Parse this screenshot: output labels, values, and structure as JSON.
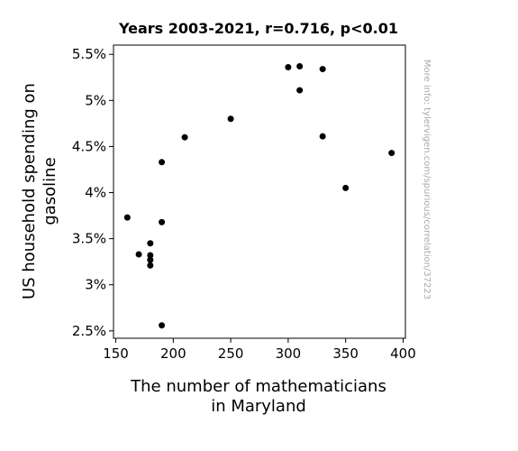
{
  "chart_data": {
    "type": "scatter",
    "title": "Years 2003-2021, r=0.716, p<0.01",
    "xlabel_lines": [
      "The number of mathematicians",
      "in Maryland"
    ],
    "ylabel_lines": [
      "US household spending on",
      "gasoline"
    ],
    "xlim": [
      148,
      402
    ],
    "ylim": [
      2.42,
      5.6
    ],
    "x_ticks": [
      150,
      200,
      250,
      300,
      350,
      400
    ],
    "x_tick_labels": [
      "150",
      "200",
      "250",
      "300",
      "350",
      "400"
    ],
    "y_ticks": [
      2.5,
      3,
      3.5,
      4,
      4.5,
      5,
      5.5
    ],
    "y_tick_labels": [
      "2.5%",
      "3%",
      "3.5%",
      "4%",
      "4.5%",
      "5%",
      "5.5%"
    ],
    "grid": false,
    "marker_color": "#000000",
    "points": [
      {
        "x": 160,
        "y": 3.73
      },
      {
        "x": 170,
        "y": 3.33
      },
      {
        "x": 180,
        "y": 3.45
      },
      {
        "x": 180,
        "y": 3.32
      },
      {
        "x": 180,
        "y": 3.27
      },
      {
        "x": 180,
        "y": 3.21
      },
      {
        "x": 190,
        "y": 4.33
      },
      {
        "x": 190,
        "y": 3.68
      },
      {
        "x": 190,
        "y": 2.56
      },
      {
        "x": 210,
        "y": 4.6
      },
      {
        "x": 250,
        "y": 4.8
      },
      {
        "x": 300,
        "y": 5.36
      },
      {
        "x": 310,
        "y": 5.37
      },
      {
        "x": 310,
        "y": 5.11
      },
      {
        "x": 330,
        "y": 5.34
      },
      {
        "x": 330,
        "y": 4.61
      },
      {
        "x": 350,
        "y": 4.05
      },
      {
        "x": 390,
        "y": 4.43
      }
    ]
  },
  "watermark": "More info: tylervigen.com/spurious/correlation/37223"
}
